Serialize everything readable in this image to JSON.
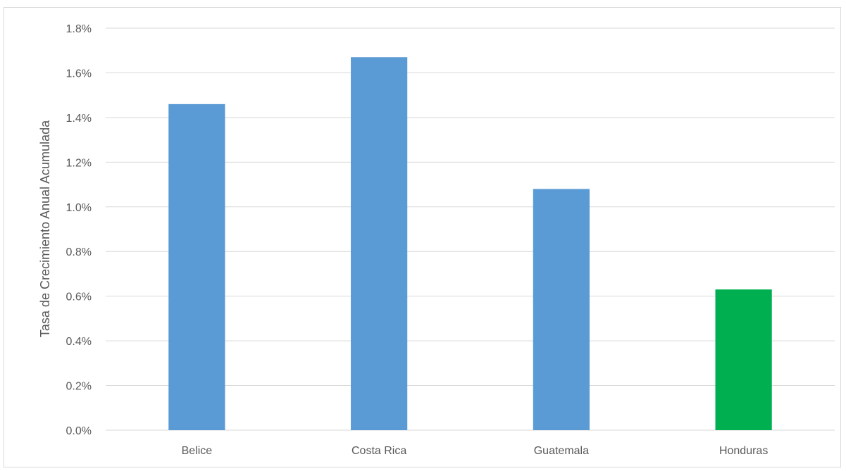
{
  "chart_data": {
    "type": "bar",
    "title": "",
    "xlabel": "",
    "ylabel": "Tasa de Crecimiento Anual Acumulada",
    "categories": [
      "Belice",
      "Costa Rica",
      "Guatemala",
      "Honduras"
    ],
    "values": [
      1.46,
      1.67,
      1.08,
      0.63
    ],
    "value_unit": "%",
    "bar_colors": [
      "#5b9bd5",
      "#5b9bd5",
      "#5b9bd5",
      "#00b050"
    ],
    "ylim": [
      0,
      1.8
    ],
    "yticks": [
      "0.0%",
      "0.2%",
      "0.4%",
      "0.6%",
      "0.8%",
      "1.0%",
      "1.2%",
      "1.4%",
      "1.6%",
      "1.8%"
    ],
    "ytick_values": [
      0,
      0.2,
      0.4,
      0.6,
      0.8,
      1.0,
      1.2,
      1.4,
      1.6,
      1.8
    ],
    "grid": true,
    "gridline_color": "#d9d9d9",
    "legend": "none"
  }
}
